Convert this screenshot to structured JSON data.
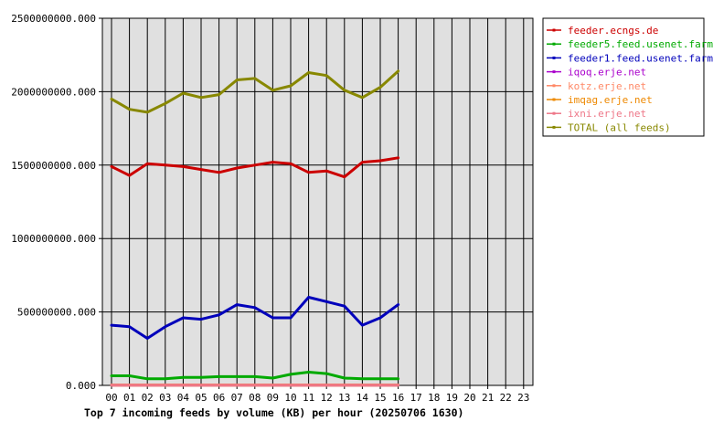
{
  "chart_data": {
    "type": "line",
    "title": "Top 7 incoming feeds by volume (KB) per hour (20250706 1630)",
    "xlabel": "",
    "ylabel": "",
    "x_ticks": [
      "00",
      "01",
      "02",
      "03",
      "04",
      "05",
      "06",
      "07",
      "08",
      "09",
      "10",
      "11",
      "12",
      "13",
      "14",
      "15",
      "16",
      "17",
      "18",
      "19",
      "20",
      "21",
      "22",
      "23"
    ],
    "y_ticks": [
      "0.000",
      "500000000.000",
      "1000000000.000",
      "1500000000.000",
      "2000000000.000",
      "2500000000.000"
    ],
    "ylim": [
      0,
      2500000000
    ],
    "grid": true,
    "legend_position": "right",
    "plot_background": "#e0e0e0",
    "series": [
      {
        "name": "feeder.ecngs.de",
        "color": "#cc0000",
        "values": [
          1490000000,
          1430000000,
          1510000000,
          1500000000,
          1490000000,
          1470000000,
          1450000000,
          1480000000,
          1500000000,
          1520000000,
          1510000000,
          1450000000,
          1460000000,
          1420000000,
          1520000000,
          1530000000,
          1550000000
        ]
      },
      {
        "name": "feeder5.feed.usenet.farm",
        "color": "#00aa00",
        "values": [
          65000000,
          65000000,
          45000000,
          45000000,
          55000000,
          55000000,
          60000000,
          60000000,
          60000000,
          50000000,
          75000000,
          90000000,
          80000000,
          50000000,
          45000000,
          45000000,
          45000000
        ]
      },
      {
        "name": "feeder1.feed.usenet.farm",
        "color": "#0000bb",
        "values": [
          410000000,
          400000000,
          320000000,
          400000000,
          460000000,
          450000000,
          480000000,
          550000000,
          530000000,
          460000000,
          460000000,
          600000000,
          570000000,
          540000000,
          410000000,
          460000000,
          550000000
        ]
      },
      {
        "name": "iqoq.erje.net",
        "color": "#aa00cc",
        "values": [
          2000000,
          2000000,
          2000000,
          2000000,
          2000000,
          2000000,
          2000000,
          2000000,
          2000000,
          2000000,
          2000000,
          2000000,
          2000000,
          2000000,
          2000000,
          2000000,
          2000000
        ]
      },
      {
        "name": "kotz.erje.net",
        "color": "#ff8866",
        "values": [
          3000000,
          3000000,
          3000000,
          3000000,
          3000000,
          3000000,
          3000000,
          3000000,
          3000000,
          3000000,
          3000000,
          3000000,
          3000000,
          3000000,
          3000000,
          3000000,
          3000000
        ]
      },
      {
        "name": "imqag.erje.net",
        "color": "#ee8800",
        "values": [
          1000000,
          1000000,
          1000000,
          1000000,
          1000000,
          1000000,
          1000000,
          1000000,
          1000000,
          1000000,
          1000000,
          1000000,
          1000000,
          1000000,
          1000000,
          1000000,
          1000000
        ]
      },
      {
        "name": "ixni.erje.net",
        "color": "#ee7788",
        "values": [
          1500000,
          1500000,
          1500000,
          1500000,
          1500000,
          1500000,
          1500000,
          1500000,
          1500000,
          1500000,
          1500000,
          1500000,
          1500000,
          1500000,
          1500000,
          1500000,
          1500000
        ]
      },
      {
        "name": "TOTAL (all feeds)",
        "color": "#888800",
        "values": [
          1950000000,
          1880000000,
          1860000000,
          1920000000,
          1990000000,
          1960000000,
          1980000000,
          2080000000,
          2090000000,
          2010000000,
          2040000000,
          2130000000,
          2110000000,
          2010000000,
          1960000000,
          2030000000,
          2140000000
        ]
      }
    ]
  }
}
